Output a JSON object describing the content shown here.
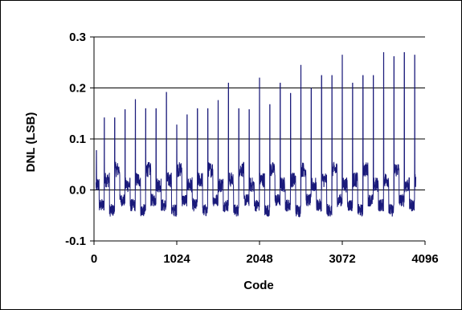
{
  "chart_data": {
    "type": "line",
    "xlabel": "Code",
    "ylabel": "DNL (LSB)",
    "xlim": [
      0,
      4096
    ],
    "ylim": [
      -0.1,
      0.3
    ],
    "x_ticks": [
      0,
      1024,
      2048,
      3072,
      4096
    ],
    "x_tick_labels": [
      "0",
      "1024",
      "2048",
      "3072",
      "4096"
    ],
    "y_ticks": [
      -0.1,
      0.0,
      0.1,
      0.2,
      0.3
    ],
    "y_tick_labels": [
      "-0.1",
      "0.0",
      "0.1",
      "0.2",
      "0.3"
    ],
    "grid": "horizontal",
    "legend": "none",
    "line_color": "#1a1a7a",
    "series": [
      {
        "band_period_codes": 128,
        "upper_band_levels": [
          0.01,
          0.02,
          0.04
        ],
        "lower_band_levels": [
          -0.02,
          -0.03,
          -0.04
        ],
        "spikes": [
          {
            "code": 30,
            "value": 0.078
          },
          {
            "code": 128,
            "value": 0.142
          },
          {
            "code": 256,
            "value": 0.142
          },
          {
            "code": 384,
            "value": 0.158
          },
          {
            "code": 512,
            "value": 0.178
          },
          {
            "code": 640,
            "value": 0.16
          },
          {
            "code": 768,
            "value": 0.16
          },
          {
            "code": 896,
            "value": 0.192
          },
          {
            "code": 1024,
            "value": 0.128
          },
          {
            "code": 1152,
            "value": 0.148
          },
          {
            "code": 1280,
            "value": 0.16
          },
          {
            "code": 1408,
            "value": 0.16
          },
          {
            "code": 1536,
            "value": 0.176
          },
          {
            "code": 1664,
            "value": 0.21
          },
          {
            "code": 1792,
            "value": 0.16
          },
          {
            "code": 1920,
            "value": 0.158
          },
          {
            "code": 2048,
            "value": 0.22
          },
          {
            "code": 2176,
            "value": 0.168
          },
          {
            "code": 2304,
            "value": 0.21
          },
          {
            "code": 2432,
            "value": 0.19
          },
          {
            "code": 2560,
            "value": 0.245
          },
          {
            "code": 2688,
            "value": 0.2
          },
          {
            "code": 2816,
            "value": 0.225
          },
          {
            "code": 2944,
            "value": 0.225
          },
          {
            "code": 3072,
            "value": 0.265
          },
          {
            "code": 3200,
            "value": 0.21
          },
          {
            "code": 3328,
            "value": 0.225
          },
          {
            "code": 3456,
            "value": 0.225
          },
          {
            "code": 3584,
            "value": 0.27
          },
          {
            "code": 3712,
            "value": 0.262
          },
          {
            "code": 3840,
            "value": 0.27
          },
          {
            "code": 3968,
            "value": 0.265
          }
        ]
      }
    ]
  }
}
